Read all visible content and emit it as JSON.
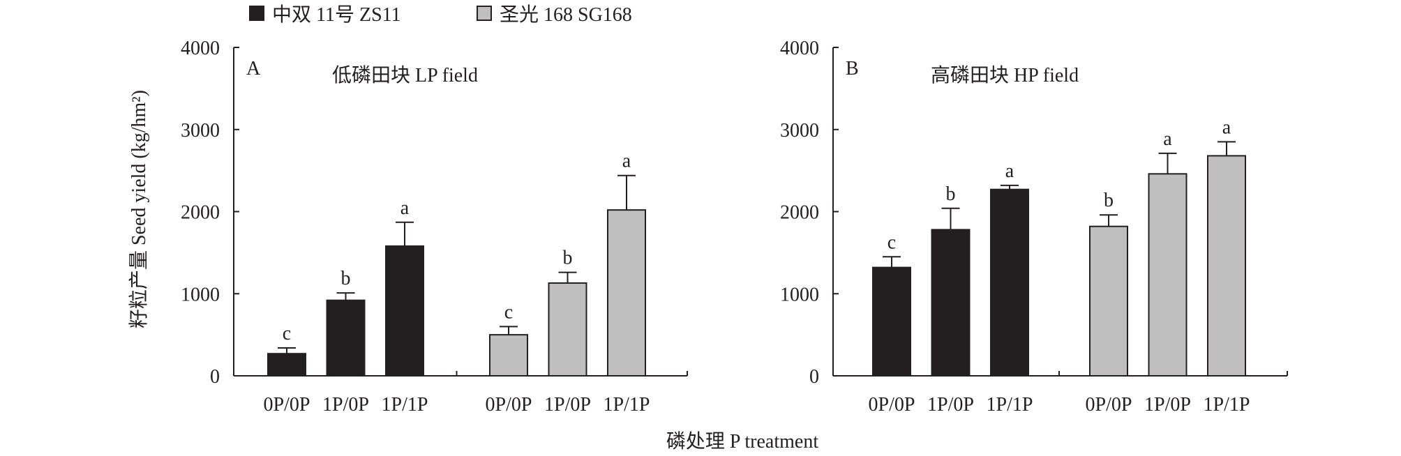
{
  "legend": [
    {
      "label": "中双 11号 ZS11",
      "color": "#231f20"
    },
    {
      "label": "圣光 168 SG168",
      "color": "#bfbfbf"
    }
  ],
  "ylabel": "籽粒产量 Seed yield (kg/hm²)",
  "xlabel": "磷处理 P treatment",
  "chart_data": [
    {
      "type": "bar",
      "panel": "A",
      "title": "低磷田块 LP field",
      "categories": [
        "0P/0P",
        "1P/0P",
        "1P/1P"
      ],
      "ylim": [
        0,
        4000
      ],
      "yticks": [
        0,
        1000,
        2000,
        3000,
        4000
      ],
      "ylabel": "籽粒产量 Seed yield (kg/hm²)",
      "xlabel": "磷处理 P treatment",
      "grid": false,
      "legend_position": "top",
      "series": [
        {
          "name": "中双 11号 ZS11",
          "color": "#231f20",
          "values": [
            270,
            920,
            1580
          ],
          "errors": [
            70,
            90,
            290
          ],
          "letters": [
            "c",
            "b",
            "a"
          ]
        },
        {
          "name": "圣光 168 SG168",
          "color": "#bfbfbf",
          "values": [
            500,
            1130,
            2020
          ],
          "errors": [
            100,
            130,
            420
          ],
          "letters": [
            "c",
            "b",
            "a"
          ]
        }
      ]
    },
    {
      "type": "bar",
      "panel": "B",
      "title": "高磷田块 HP field",
      "categories": [
        "0P/0P",
        "1P/0P",
        "1P/1P"
      ],
      "ylim": [
        0,
        4000
      ],
      "yticks": [
        0,
        1000,
        2000,
        3000,
        4000
      ],
      "ylabel": "",
      "xlabel": "磷处理 P treatment",
      "grid": false,
      "legend_position": "top",
      "series": [
        {
          "name": "中双 11号 ZS11",
          "color": "#231f20",
          "values": [
            1320,
            1780,
            2270
          ],
          "errors": [
            130,
            260,
            50
          ],
          "letters": [
            "c",
            "b",
            "a"
          ]
        },
        {
          "name": "圣光 168 SG168",
          "color": "#bfbfbf",
          "values": [
            1820,
            2460,
            2680
          ],
          "errors": [
            140,
            250,
            170
          ],
          "letters": [
            "b",
            "a",
            "a"
          ]
        }
      ]
    }
  ]
}
